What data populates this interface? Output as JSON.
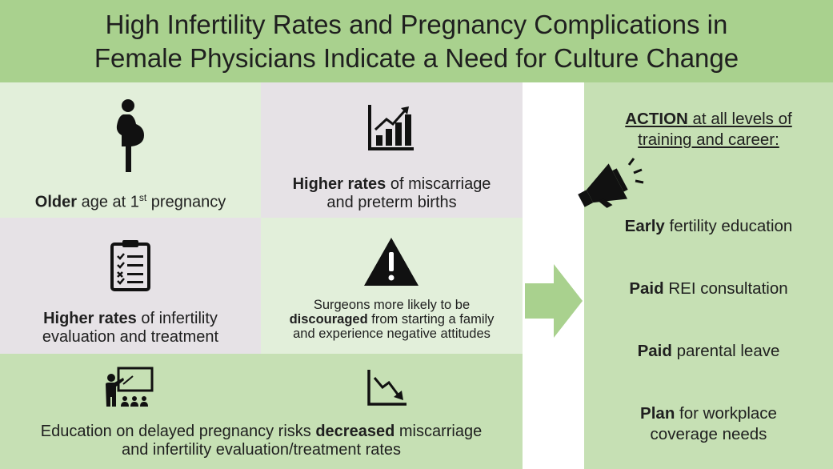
{
  "header": {
    "line1": "High Infertility Rates and Pregnancy Complications in",
    "line2": "Female Physicians Indicate a Need for Culture Change"
  },
  "cells": {
    "older_age": {
      "bold": "Older",
      "rest": " age at 1",
      "sup": "st",
      "tail": " pregnancy"
    },
    "miscarriage": {
      "bold": "Higher rates",
      "rest1": " of miscarriage",
      "line2": "and preterm births"
    },
    "infertility": {
      "bold": "Higher rates",
      "rest1": " of infertility",
      "line2": "evaluation and treatment"
    },
    "surgeons": {
      "line1": "Surgeons more likely to be",
      "bold": "discouraged",
      "rest2": " from starting a family",
      "line3": "and experience negative attitudes"
    },
    "education": {
      "pre": "Education on delayed pregnancy risks ",
      "bold": "decreased",
      "post": " miscarriage",
      "line2": "and infertility evaluation/treatment rates"
    }
  },
  "actions": {
    "title_bold": "ACTION",
    "title_rest": " at all levels of",
    "title_line2": "training and career:",
    "items": [
      {
        "bold": "Early",
        "rest": " fertility education",
        "line2": ""
      },
      {
        "bold": "Paid",
        "rest": " REI consultation",
        "line2": ""
      },
      {
        "bold": "Paid",
        "rest": " parental leave",
        "line2": ""
      },
      {
        "bold": "Plan",
        "rest": " for workplace",
        "line2": "coverage needs"
      }
    ]
  },
  "icons": [
    "pregnant-woman-icon",
    "rising-bar-chart-icon",
    "clipboard-checklist-icon",
    "warning-triangle-icon",
    "teacher-class-icon",
    "declining-chart-icon",
    "right-arrow-icon",
    "megaphone-icon"
  ],
  "colors": {
    "header_bg": "#a9d18e",
    "light_green": "#e2efda",
    "light_gray": "#e6e2e6",
    "mid_green": "#c6e0b4",
    "arrow_green": "#a9d18e"
  }
}
